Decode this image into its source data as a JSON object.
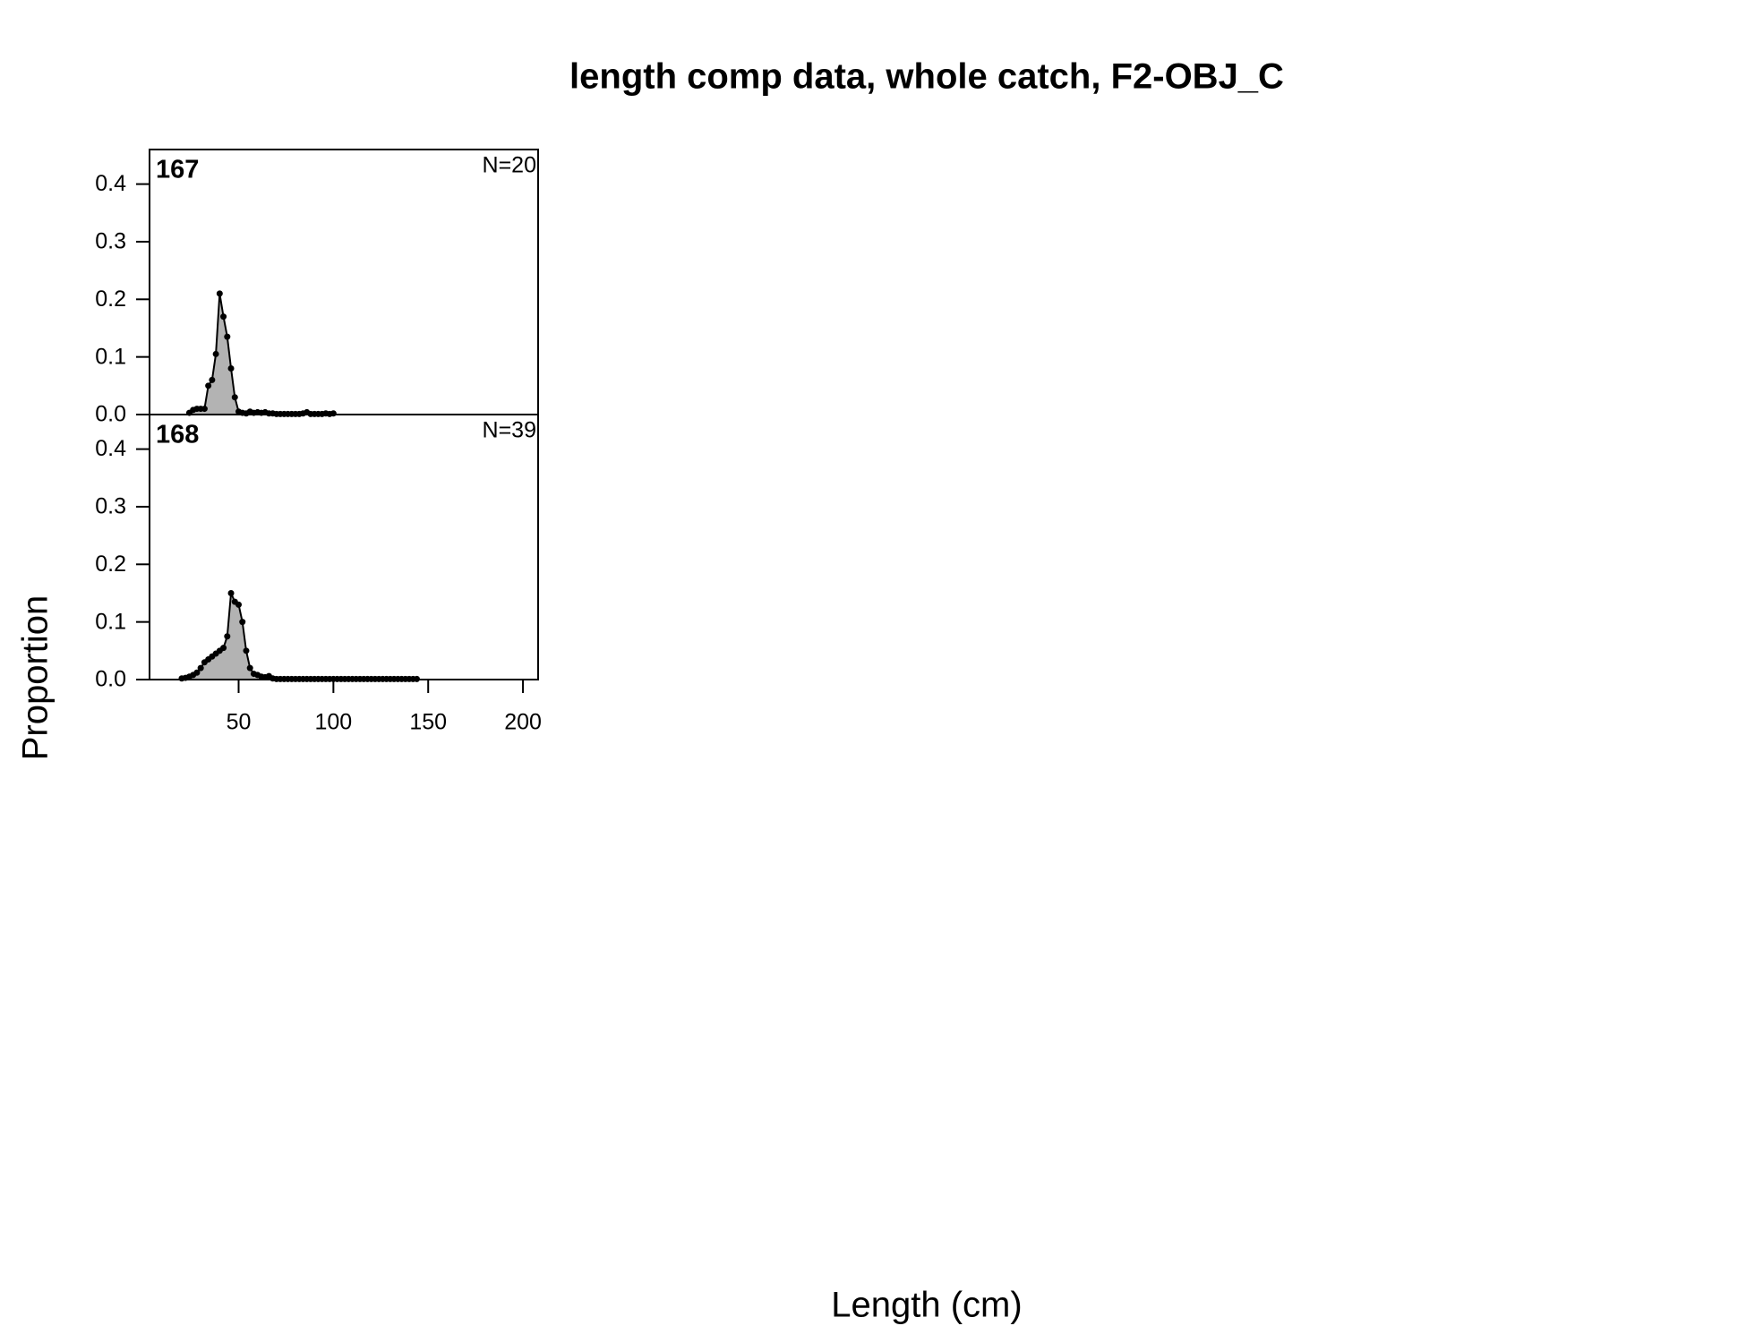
{
  "title": "length comp data, whole catch, F2-OBJ_C",
  "x_label": "Length (cm)",
  "y_label": "Proportion",
  "chart_data": [
    {
      "type": "area",
      "title": "167",
      "annotation": "N=20",
      "color": "#b3b3b3",
      "x": [
        24,
        26,
        28,
        30,
        32,
        34,
        36,
        38,
        40,
        42,
        44,
        46,
        48,
        50,
        52,
        54,
        56,
        58,
        60,
        62,
        64,
        66,
        68,
        70,
        72,
        74,
        76,
        78,
        80,
        82,
        84,
        86,
        88,
        90,
        92,
        94,
        96,
        98,
        100
      ],
      "values": [
        0.003,
        0.008,
        0.01,
        0.01,
        0.01,
        0.05,
        0.06,
        0.105,
        0.21,
        0.17,
        0.135,
        0.08,
        0.03,
        0.005,
        0.003,
        0.002,
        0.005,
        0.003,
        0.004,
        0.003,
        0.004,
        0.002,
        0.002,
        0.001,
        0.001,
        0.001,
        0.001,
        0.001,
        0.001,
        0.001,
        0.002,
        0.004,
        0.001,
        0.001,
        0.001,
        0.001,
        0.002,
        0.001,
        0.002
      ],
      "xlim": [
        3,
        208
      ],
      "ylim": [
        0,
        0.46
      ],
      "yticks": [
        {
          "value": 0,
          "label": "0.0"
        },
        0.1,
        0.2,
        0.3,
        0.4
      ]
    },
    {
      "type": "area",
      "title": "168",
      "annotation": "N=39",
      "color": "#b3b3b3",
      "x": [
        20,
        22,
        24,
        26,
        28,
        30,
        32,
        34,
        36,
        38,
        40,
        42,
        44,
        46,
        48,
        50,
        52,
        54,
        56,
        58,
        60,
        62,
        64,
        66,
        68,
        70,
        72,
        74,
        76,
        78,
        80,
        82,
        84,
        86,
        88,
        90,
        92,
        94,
        96,
        98,
        100,
        102,
        104,
        106,
        108,
        110,
        112,
        114,
        116,
        118,
        120,
        122,
        124,
        126,
        128,
        130,
        132,
        134,
        136,
        138,
        140,
        142,
        144
      ],
      "values": [
        0.002,
        0.003,
        0.005,
        0.008,
        0.012,
        0.02,
        0.03,
        0.035,
        0.04,
        0.045,
        0.05,
        0.055,
        0.075,
        0.15,
        0.135,
        0.13,
        0.1,
        0.05,
        0.02,
        0.01,
        0.008,
        0.005,
        0.004,
        0.006,
        0.002,
        0.001,
        0.001,
        0.001,
        0.001,
        0.001,
        0.001,
        0.001,
        0.001,
        0.001,
        0.001,
        0.001,
        0.001,
        0.001,
        0.001,
        0.001,
        0.001,
        0.001,
        0.001,
        0.001,
        0.001,
        0.001,
        0.001,
        0.001,
        0.001,
        0.001,
        0.001,
        0.001,
        0.001,
        0.001,
        0.001,
        0.001,
        0.001,
        0.001,
        0.001,
        0.001,
        0.001,
        0.001,
        0.001
      ],
      "xlim": [
        3,
        208
      ],
      "ylim": [
        0,
        0.46
      ],
      "yticks": [
        {
          "value": 0,
          "label": "0.0"
        },
        0.1,
        0.2,
        0.3,
        0.4
      ],
      "xticks": [
        50,
        100,
        150,
        200
      ]
    }
  ]
}
